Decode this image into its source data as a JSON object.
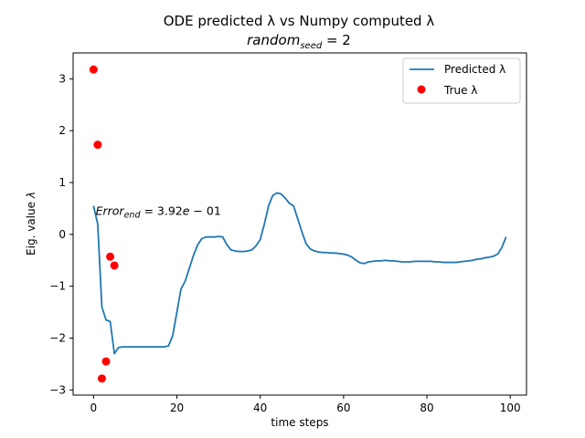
{
  "chart_data": {
    "type": "line",
    "title": "ODE predicted λ vs Numpy computed λ",
    "subtitle": "random_seed = 2",
    "xlabel": "time steps",
    "ylabel": "Eig. value λ",
    "xlim": [
      -4.9,
      103.9
    ],
    "ylim": [
      -3.1,
      3.5
    ],
    "xticks": [
      0,
      20,
      40,
      60,
      80,
      100
    ],
    "yticks": [
      -3,
      -2,
      -1,
      0,
      1,
      2,
      3
    ],
    "xtick_labels": [
      "0",
      "20",
      "40",
      "60",
      "80",
      "100"
    ],
    "ytick_labels": [
      "−3",
      "−2",
      "−1",
      "0",
      "1",
      "2",
      "3"
    ],
    "grid": false,
    "legend_position": "top-right",
    "annotation": {
      "text": "Error_end = 3.92e−01",
      "x": 0.5,
      "y": 0.45
    },
    "series": [
      {
        "name": "Predicted λ",
        "kind": "line",
        "color": "#1f77b4",
        "x": [
          0,
          1,
          2,
          3,
          4,
          5,
          6,
          7,
          8,
          9,
          10,
          11,
          12,
          13,
          14,
          15,
          16,
          17,
          18,
          19,
          20,
          21,
          22,
          23,
          24,
          25,
          26,
          27,
          28,
          29,
          30,
          31,
          32,
          33,
          34,
          35,
          36,
          37,
          38,
          39,
          40,
          41,
          42,
          43,
          44,
          45,
          46,
          47,
          48,
          49,
          50,
          51,
          52,
          53,
          54,
          55,
          56,
          57,
          58,
          59,
          60,
          61,
          62,
          63,
          64,
          65,
          66,
          67,
          68,
          69,
          70,
          71,
          72,
          73,
          74,
          75,
          76,
          77,
          78,
          79,
          80,
          81,
          82,
          83,
          84,
          85,
          86,
          87,
          88,
          89,
          90,
          91,
          92,
          93,
          94,
          95,
          96,
          97,
          98,
          99
        ],
        "y": [
          0.55,
          0.2,
          -1.4,
          -1.65,
          -1.68,
          -2.3,
          -2.18,
          -2.17,
          -2.17,
          -2.17,
          -2.17,
          -2.17,
          -2.17,
          -2.17,
          -2.17,
          -2.17,
          -2.17,
          -2.17,
          -2.15,
          -1.95,
          -1.5,
          -1.05,
          -0.9,
          -0.65,
          -0.4,
          -0.2,
          -0.08,
          -0.05,
          -0.05,
          -0.05,
          -0.04,
          -0.05,
          -0.2,
          -0.3,
          -0.32,
          -0.33,
          -0.33,
          -0.32,
          -0.3,
          -0.22,
          -0.1,
          0.2,
          0.55,
          0.75,
          0.8,
          0.78,
          0.7,
          0.6,
          0.55,
          0.3,
          0.05,
          -0.18,
          -0.28,
          -0.32,
          -0.34,
          -0.35,
          -0.35,
          -0.36,
          -0.36,
          -0.37,
          -0.38,
          -0.4,
          -0.44,
          -0.5,
          -0.55,
          -0.56,
          -0.53,
          -0.52,
          -0.51,
          -0.51,
          -0.5,
          -0.51,
          -0.51,
          -0.52,
          -0.53,
          -0.53,
          -0.53,
          -0.52,
          -0.52,
          -0.52,
          -0.52,
          -0.52,
          -0.53,
          -0.53,
          -0.54,
          -0.54,
          -0.54,
          -0.54,
          -0.53,
          -0.52,
          -0.51,
          -0.5,
          -0.48,
          -0.47,
          -0.45,
          -0.44,
          -0.42,
          -0.38,
          -0.25,
          -0.05
        ]
      },
      {
        "name": "True λ",
        "kind": "scatter",
        "color": "#ff0000",
        "x": [
          0,
          1,
          2,
          3,
          4,
          5
        ],
        "y": [
          3.18,
          1.73,
          -2.78,
          -2.45,
          -0.43,
          -0.6
        ]
      }
    ]
  }
}
